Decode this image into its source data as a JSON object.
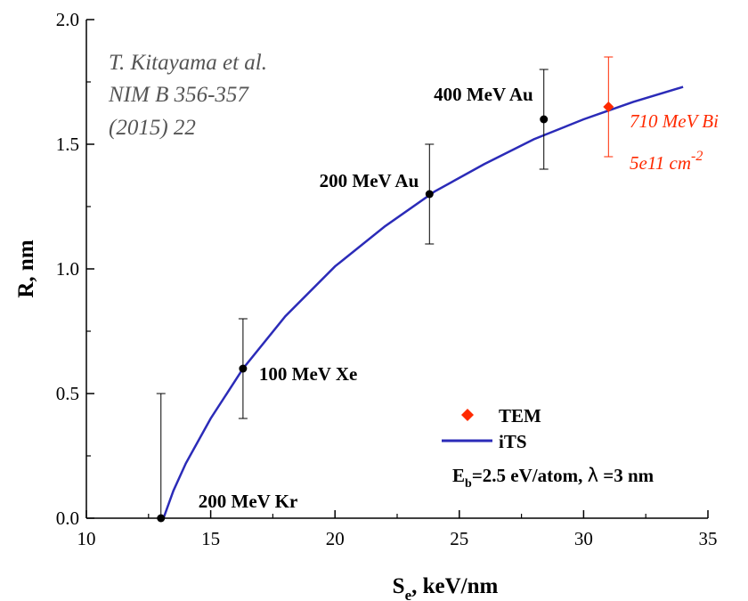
{
  "chart_data": {
    "type": "scatter",
    "xlabel_main": "S",
    "xlabel_sub": "e",
    "xlabel_rest": ", keV/nm",
    "ylabel": "R, nm",
    "xlim": [
      10,
      35
    ],
    "ylim": [
      0,
      2.0
    ],
    "x_ticks": [
      {
        "value": 10,
        "label": "10"
      },
      {
        "value": 15,
        "label": "15"
      },
      {
        "value": 20,
        "label": "20"
      },
      {
        "value": 25,
        "label": "25"
      },
      {
        "value": 30,
        "label": "30"
      },
      {
        "value": 35,
        "label": "35"
      }
    ],
    "y_ticks": [
      {
        "value": 0,
        "label": "0.0"
      },
      {
        "value": 0.5,
        "label": "0.5"
      },
      {
        "value": 1.0,
        "label": "1.0"
      },
      {
        "value": 1.5,
        "label": "1.5"
      },
      {
        "value": 2.0,
        "label": "2.0"
      }
    ],
    "citation": [
      "T. Kitayama et al.",
      "NIM B 356-357",
      "(2015) 22"
    ],
    "series": [
      {
        "name": "data",
        "color": "#000000",
        "marker": "circle",
        "points": [
          {
            "x": 13.0,
            "y": 0.0,
            "yerr_low": 0.0,
            "yerr_high": 0.5,
            "label": "200 MeV Kr"
          },
          {
            "x": 16.3,
            "y": 0.6,
            "yerr_low": 0.2,
            "yerr_high": 0.2,
            "label": "100 MeV Xe"
          },
          {
            "x": 23.8,
            "y": 1.3,
            "yerr_low": 0.2,
            "yerr_high": 0.2,
            "label": "200 MeV Au"
          },
          {
            "x": 28.4,
            "y": 1.6,
            "yerr_low": 0.2,
            "yerr_high": 0.2,
            "label": "400 MeV Au"
          }
        ]
      },
      {
        "name": "TEM",
        "color": "#ff2a00",
        "marker": "diamond",
        "points": [
          {
            "x": 31.0,
            "y": 1.65,
            "yerr_low": 0.2,
            "yerr_high": 0.2
          }
        ],
        "annotation_line1": "710 MeV Bi",
        "annotation_line2_main": "5e11 cm",
        "annotation_line2_sup": "-2"
      },
      {
        "name": "iTS",
        "color": "#2b2bb8",
        "type": "line",
        "points": [
          {
            "x": 13.1,
            "y": 0.0
          },
          {
            "x": 13.5,
            "y": 0.11
          },
          {
            "x": 14.0,
            "y": 0.22
          },
          {
            "x": 15.0,
            "y": 0.4
          },
          {
            "x": 16.3,
            "y": 0.6
          },
          {
            "x": 18.0,
            "y": 0.81
          },
          {
            "x": 20.0,
            "y": 1.01
          },
          {
            "x": 22.0,
            "y": 1.17
          },
          {
            "x": 24.0,
            "y": 1.31
          },
          {
            "x": 26.0,
            "y": 1.42
          },
          {
            "x": 28.0,
            "y": 1.52
          },
          {
            "x": 30.0,
            "y": 1.6
          },
          {
            "x": 32.0,
            "y": 1.67
          },
          {
            "x": 34.0,
            "y": 1.73
          }
        ]
      }
    ],
    "legend": {
      "placement": "bottom-right",
      "entries": [
        {
          "label": "TEM",
          "symbol": "diamond",
          "color": "#ff2a00"
        },
        {
          "label": "iTS",
          "symbol": "line",
          "color": "#2b2bb8"
        }
      ],
      "param_E": "E",
      "param_E_sub": "b",
      "param_E_rest": "=2.5 eV/atom, ",
      "param_lambda": "λ",
      "param_lambda_rest": " =3 nm"
    }
  }
}
